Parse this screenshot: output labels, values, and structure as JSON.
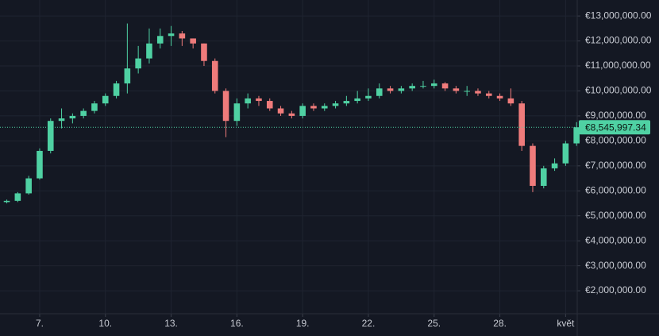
{
  "chart_data": {
    "type": "candlestick",
    "x": [
      5.5,
      6,
      6.5,
      7,
      7.5,
      8,
      8.5,
      9,
      9.5,
      10,
      10.5,
      11,
      11.5,
      12,
      12.5,
      13,
      13.5,
      14,
      14.5,
      15,
      15.5,
      16,
      16.5,
      17,
      17.5,
      18,
      18.5,
      19,
      19.5,
      20,
      20.5,
      21,
      21.5,
      22,
      22.5,
      23,
      23.5,
      24,
      24.5,
      25,
      25.5,
      26,
      26.5,
      27,
      27.5,
      28,
      28.5,
      29,
      29.5,
      30,
      30.5,
      31,
      31.5
    ],
    "open": [
      5550000.0,
      5600000.0,
      5900000.0,
      6500000.0,
      7600000.0,
      8800000.0,
      8900000.0,
      9000000.0,
      9200000.0,
      9500000.0,
      9800000.0,
      10300000.0,
      10900000.0,
      11300000.0,
      11900000.0,
      12200000.0,
      12300000.0,
      12100000.0,
      11900000.0,
      11200000.0,
      10000000.0,
      8800000.0,
      9500000.0,
      9700000.0,
      9600000.0,
      9300000.0,
      9100000.0,
      9000000.0,
      9400000.0,
      9300000.0,
      9400000.0,
      9500000.0,
      9600000.0,
      9700000.0,
      9800000.0,
      10100000.0,
      10000000.0,
      10100000.0,
      10200000.0,
      10200000.0,
      10300000.0,
      10100000.0,
      10000000.0,
      10000000.0,
      9900000.0,
      9800000.0,
      9700000.0,
      9500000.0,
      7800000.0,
      6200000.0,
      6900000.0,
      7100000.0,
      7900000.0
    ],
    "high": [
      5650000.0,
      5950000.0,
      6600000.0,
      7700000.0,
      8900000.0,
      9300000.0,
      9100000.0,
      9300000.0,
      9600000.0,
      9900000.0,
      10400000.0,
      12700000.0,
      11800000.0,
      12500000.0,
      12500000.0,
      12600000.0,
      12400000.0,
      12100000.0,
      11900000.0,
      11300000.0,
      10100000.0,
      9700000.0,
      9900000.0,
      9800000.0,
      9700000.0,
      9400000.0,
      9200000.0,
      9500000.0,
      9500000.0,
      9500000.0,
      9600000.0,
      9800000.0,
      10000000.0,
      10100000.0,
      10300000.0,
      10200000.0,
      10200000.0,
      10300000.0,
      10400000.0,
      10450000.0,
      10350000.0,
      10200000.0,
      10200000.0,
      10100000.0,
      10000000.0,
      9900000.0,
      10100000.0,
      9600000.0,
      7900000.0,
      7000000.0,
      7300000.0,
      8000000.0,
      8750000.0
    ],
    "low": [
      5500000.0,
      5550000.0,
      5850000.0,
      6450000.0,
      7500000.0,
      8500000.0,
      8700000.0,
      8900000.0,
      9100000.0,
      9400000.0,
      9700000.0,
      9900000.0,
      10700000.0,
      11100000.0,
      11700000.0,
      11800000.0,
      11800000.0,
      11700000.0,
      11000000.0,
      9900000.0,
      8150000.0,
      8600000.0,
      9300000.0,
      9400000.0,
      9200000.0,
      9000000.0,
      8900000.0,
      8900000.0,
      9200000.0,
      9200000.0,
      9300000.0,
      9400000.0,
      9500000.0,
      9600000.0,
      9700000.0,
      9900000.0,
      9900000.0,
      10000000.0,
      10100000.0,
      10100000.0,
      10000000.0,
      9900000.0,
      9800000.0,
      9800000.0,
      9700000.0,
      9600000.0,
      9400000.0,
      7600000.0,
      5950000.0,
      6100000.0,
      6800000.0,
      7000000.0,
      7800000.0
    ],
    "close": [
      5600000.0,
      5900000.0,
      6500000.0,
      7600000.0,
      8800000.0,
      8900000.0,
      9000000.0,
      9200000.0,
      9500000.0,
      9800000.0,
      10300000.0,
      10900000.0,
      11300000.0,
      11900000.0,
      12200000.0,
      12300000.0,
      12100000.0,
      11900000.0,
      11200000.0,
      10000000.0,
      8800000.0,
      9500000.0,
      9700000.0,
      9600000.0,
      9300000.0,
      9100000.0,
      9000000.0,
      9400000.0,
      9300000.0,
      9400000.0,
      9500000.0,
      9600000.0,
      9700000.0,
      9800000.0,
      10100000.0,
      10000000.0,
      10100000.0,
      10200000.0,
      10200000.0,
      10300000.0,
      10100000.0,
      10000000.0,
      10000000.0,
      9900000.0,
      9800000.0,
      9700000.0,
      9500000.0,
      7800000.0,
      6200000.0,
      6900000.0,
      7100000.0,
      7900000.0,
      8545997.34
    ],
    "up_color": "#4fd1a3",
    "down_color": "#ef7b7b",
    "last_price": {
      "value": 8545997.34,
      "label": "€8,545,997.34"
    },
    "xlim": [
      5.19,
      31.53
    ],
    "xticks": [
      {
        "value": 7,
        "label": "7."
      },
      {
        "value": 10,
        "label": "10."
      },
      {
        "value": 13,
        "label": "13."
      },
      {
        "value": 16,
        "label": "16."
      },
      {
        "value": 19,
        "label": "19."
      },
      {
        "value": 22,
        "label": "22."
      },
      {
        "value": 25,
        "label": "25."
      },
      {
        "value": 28,
        "label": "28."
      },
      {
        "value": 31,
        "label": "květ"
      }
    ],
    "ylim": [
      1080000,
      13640000
    ],
    "yticks": [
      {
        "value": 2000000,
        "label": "€2,000,000.00"
      },
      {
        "value": 3000000,
        "label": "€3,000,000.00"
      },
      {
        "value": 4000000,
        "label": "€4,000,000.00"
      },
      {
        "value": 5000000,
        "label": "€5,000,000.00"
      },
      {
        "value": 6000000,
        "label": "€6,000,000.00"
      },
      {
        "value": 7000000,
        "label": "€7,000,000.00"
      },
      {
        "value": 8000000,
        "label": "€8,000,000.00"
      },
      {
        "value": 9000000,
        "label": "€9,000,000.00"
      },
      {
        "value": 10000000,
        "label": "€10,000,000.00"
      },
      {
        "value": 11000000,
        "label": "€11,000,000.00"
      },
      {
        "value": 12000000,
        "label": "€12,000,000.00"
      },
      {
        "value": 13000000,
        "label": "€13,000,000.00"
      }
    ],
    "grid": true
  }
}
